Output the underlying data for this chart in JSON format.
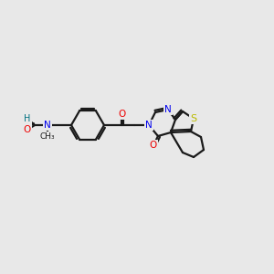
{
  "background_color": "#e8e8e8",
  "fig_width": 3.0,
  "fig_height": 3.0,
  "dpi": 100,
  "atom_colors": {
    "C": "#1a1a1a",
    "N": "#0000ee",
    "O": "#ee0000",
    "S": "#bbbb00",
    "H": "#007080"
  },
  "bond_color": "#1a1a1a",
  "bond_width": 1.6,
  "font_size_atom": 7.5
}
